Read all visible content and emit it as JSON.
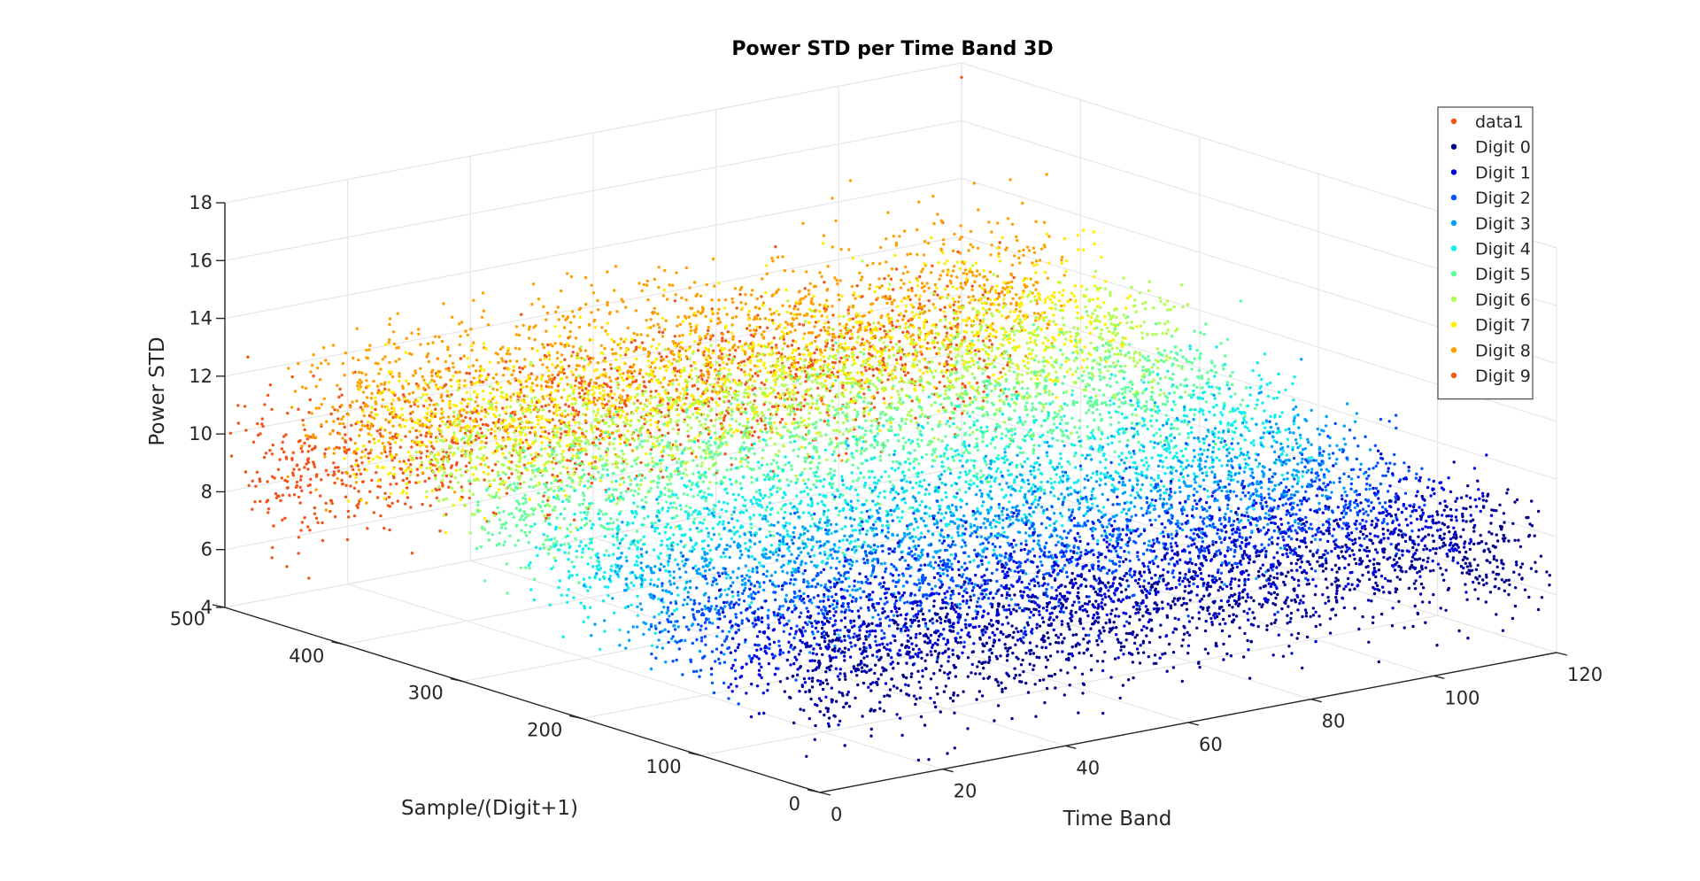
{
  "chart_data": {
    "type": "scatter3d",
    "title": "Power STD per Time Band 3D",
    "xlabel": "Time Band",
    "ylabel": "Sample/(Digit+1)",
    "zlabel": "Power STD",
    "xlim": [
      0,
      120
    ],
    "ylim": [
      0,
      500
    ],
    "zlim": [
      4,
      18
    ],
    "xticks": [
      "0",
      "20",
      "40",
      "60",
      "80",
      "100",
      "120"
    ],
    "yticks": [
      "0",
      "100",
      "200",
      "300",
      "400",
      "500"
    ],
    "zticks": [
      "4",
      "6",
      "8",
      "10",
      "12",
      "14",
      "16",
      "18"
    ],
    "grid": true,
    "legend_position": "top-right",
    "series": [
      {
        "name": "data1",
        "color": "#f1551a",
        "y_range": [
          495,
          500
        ],
        "z_mean": 17.3,
        "z_sd": 0.2,
        "count": 1
      },
      {
        "name": "Digit 0",
        "color": "#00008f",
        "y_range": [
          0,
          50
        ],
        "z_mean": 7.6,
        "z_sd": 1.1,
        "count": 1400
      },
      {
        "name": "Digit 1",
        "color": "#0000df",
        "y_range": [
          50,
          100
        ],
        "z_mean": 7.8,
        "z_sd": 1.1,
        "count": 1400
      },
      {
        "name": "Digit 2",
        "color": "#0050ff",
        "y_range": [
          100,
          150
        ],
        "z_mean": 8.1,
        "z_sd": 1.1,
        "count": 1400
      },
      {
        "name": "Digit 3",
        "color": "#00a0ff",
        "y_range": [
          150,
          200
        ],
        "z_mean": 8.6,
        "z_sd": 1.1,
        "count": 1400
      },
      {
        "name": "Digit 4",
        "color": "#10efef",
        "y_range": [
          200,
          250
        ],
        "z_mean": 9.1,
        "z_sd": 1.1,
        "count": 1400
      },
      {
        "name": "Digit 5",
        "color": "#60ffa0",
        "y_range": [
          250,
          300
        ],
        "z_mean": 10.1,
        "z_sd": 1.1,
        "count": 1400
      },
      {
        "name": "Digit 6",
        "color": "#b0ff50",
        "y_range": [
          300,
          350
        ],
        "z_mean": 11.0,
        "z_sd": 1.1,
        "count": 1400
      },
      {
        "name": "Digit 7",
        "color": "#ffef00",
        "y_range": [
          350,
          400
        ],
        "z_mean": 11.2,
        "z_sd": 1.2,
        "count": 1400
      },
      {
        "name": "Digit 8",
        "color": "#ffa000",
        "y_range": [
          400,
          450
        ],
        "z_mean": 11.6,
        "z_sd": 1.3,
        "count": 1400
      },
      {
        "name": "Digit 9",
        "color": "#f1551a",
        "y_range": [
          450,
          500
        ],
        "z_mean": 8.8,
        "z_sd": 1.3,
        "count": 1400
      }
    ],
    "notes_points": [
      {
        "series": "data1",
        "x": 120,
        "y": 500,
        "z": 17.5
      }
    ]
  }
}
